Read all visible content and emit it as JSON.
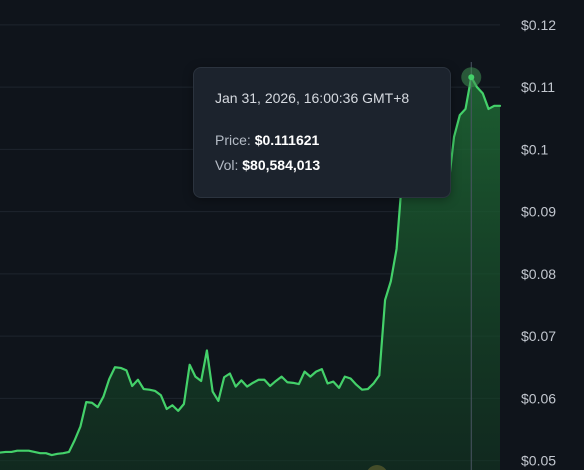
{
  "chart_data": {
    "type": "area",
    "title": "",
    "xlabel": "",
    "ylabel": "",
    "ylim": [
      0.0485,
      0.124
    ],
    "y_ticks": [
      "$0.12",
      "$0.11",
      "$0.1",
      "$0.09",
      "$0.08",
      "$0.07",
      "$0.06",
      "$0.05"
    ],
    "y_tick_values": [
      0.12,
      0.11,
      0.1,
      0.09,
      0.08,
      0.07,
      0.06,
      0.05
    ],
    "grid": true,
    "y_axis_position": "right",
    "line_color": "#44d16a",
    "fill_color": "#1f6b35",
    "background_color": "#0f141b",
    "highlight_index": 94,
    "series": [
      {
        "values": [
          0.0513,
          0.0514,
          0.0514,
          0.0516,
          0.0516,
          0.0516,
          0.0514,
          0.0512,
          0.0512,
          0.0509,
          0.0511,
          0.0512,
          0.0514,
          0.0533,
          0.0555,
          0.0594,
          0.0593,
          0.0586,
          0.0603,
          0.0631,
          0.065,
          0.0649,
          0.0645,
          0.062,
          0.063,
          0.0615,
          0.0614,
          0.0612,
          0.0605,
          0.0583,
          0.0589,
          0.058,
          0.0591,
          0.0654,
          0.0635,
          0.0628,
          0.0677,
          0.0611,
          0.0596,
          0.0634,
          0.064,
          0.0619,
          0.0629,
          0.0619,
          0.0625,
          0.063,
          0.063,
          0.062,
          0.0628,
          0.0635,
          0.0626,
          0.0625,
          0.0623,
          0.0643,
          0.0635,
          0.0643,
          0.0647,
          0.0624,
          0.0627,
          0.0617,
          0.0635,
          0.0632,
          0.0622,
          0.0614,
          0.0615,
          0.0624,
          0.0637,
          0.0758,
          0.0788,
          0.084,
          0.0958,
          0.1012,
          0.107,
          0.1085,
          0.108,
          0.109,
          0.1065,
          0.105,
          0.094,
          0.102,
          0.1055,
          0.1065,
          0.1116,
          0.11,
          0.109,
          0.1065,
          0.107,
          0.107
        ]
      }
    ],
    "tooltip": {
      "date": "Jan 31, 2026, 16:00:36 GMT+8",
      "price_label": "Price:",
      "price_value": "$0.111621",
      "vol_label": "Vol:",
      "vol_value": "$80,584,013"
    }
  }
}
